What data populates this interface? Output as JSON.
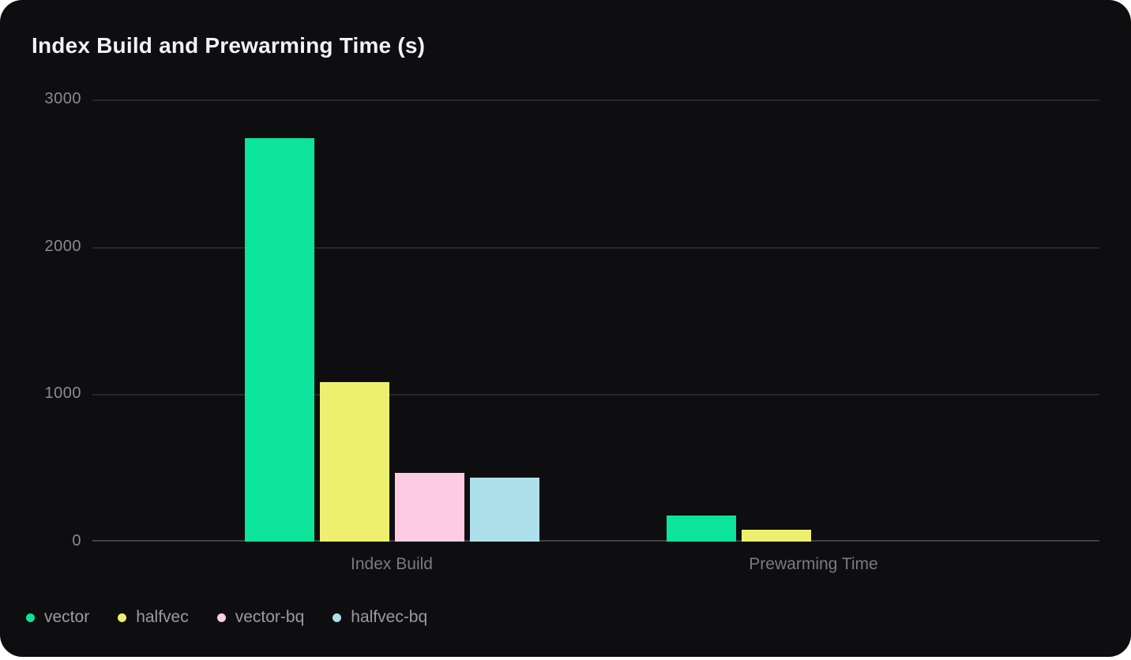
{
  "chart_data": {
    "type": "bar",
    "title": "Index Build and Prewarming Time (s)",
    "categories": [
      "Index Build",
      "Prewarming Time"
    ],
    "series": [
      {
        "name": "vector",
        "color": "#0BE49A",
        "values": [
          2735,
          175
        ]
      },
      {
        "name": "halfvec",
        "color": "#EDF06F",
        "values": [
          1080,
          78
        ]
      },
      {
        "name": "vector-bq",
        "color": "#FDCBE2",
        "values": [
          465,
          0
        ]
      },
      {
        "name": "halfvec-bq",
        "color": "#AEE0EC",
        "values": [
          435,
          0
        ]
      }
    ],
    "ylabel": "",
    "xlabel": "",
    "ylim": [
      0,
      3000
    ],
    "yticks": [
      0,
      1000,
      2000,
      3000
    ],
    "grid": true,
    "legend_position": "bottom-left",
    "background": "#0e0e10",
    "gridline_color": "#28282b",
    "baseline_color": "#414144",
    "tick_label_color": "#8b8b90",
    "category_label_color": "#7b7b80",
    "legend_label_color": "#9b9ba0",
    "title_color": "#f2f2f4"
  }
}
